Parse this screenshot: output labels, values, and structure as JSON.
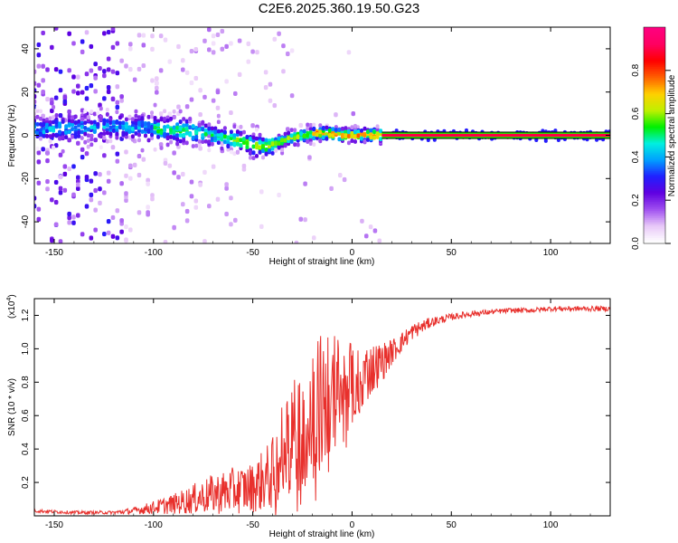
{
  "title": "C2E6.2025.360.19.50.G23",
  "chart_data": [
    {
      "type": "heatmap",
      "xlabel": "Height of straight line (km)",
      "ylabel": "Frequency (Hz)",
      "xlim": [
        -160,
        130
      ],
      "ylim": [
        -50,
        50
      ],
      "xticks": [
        -150,
        -100,
        -50,
        0,
        50,
        100
      ],
      "yticks": [
        -40,
        -20,
        0,
        20,
        40
      ],
      "ridge": {
        "x": [
          -160,
          -140,
          -120,
          -100,
          -85,
          -75,
          -65,
          -55,
          -48,
          -42,
          -36,
          -30,
          -24,
          -18,
          -12,
          -6,
          0,
          6,
          15,
          130
        ],
        "freq": [
          3,
          3,
          4,
          3,
          2,
          1,
          -1,
          -3,
          -5,
          -5,
          -3,
          -1,
          0,
          1,
          1,
          0,
          0,
          0,
          0,
          0
        ]
      },
      "colorbar": {
        "label": "Normalized spectral amplitude",
        "range": [
          0,
          1
        ],
        "ticks": [
          "0.0",
          "0.2",
          "0.4",
          "0.6",
          "0.8"
        ],
        "colors": [
          "#ffffff",
          "#e8c8f8",
          "#a050f0",
          "#6000e0",
          "#2020ff",
          "#00a0ff",
          "#00f0e0",
          "#00f000",
          "#c0f000",
          "#ffd000",
          "#ff6000",
          "#ff0000",
          "#ff0060",
          "#ff0080"
        ]
      }
    },
    {
      "type": "line",
      "xlabel": "Height of straight line (km)",
      "ylabel": "SNR (10 * v/v)",
      "y_multiplier": "(x10",
      "y_multiplier_exp": "4",
      "y_multiplier_close": ")",
      "xlim": [
        -160,
        130
      ],
      "ylim": [
        0,
        1.3
      ],
      "xticks": [
        -150,
        -100,
        -50,
        0,
        50,
        100
      ],
      "yticks": [
        "0.2",
        "0.4",
        "0.6",
        "0.8",
        "1.0",
        "1.2"
      ],
      "color": "#e8302c",
      "series": [
        {
          "name": "SNR",
          "x": [
            -160,
            -140,
            -120,
            -110,
            -100,
            -90,
            -80,
            -70,
            -60,
            -50,
            -40,
            -35,
            -30,
            -25,
            -20,
            -15,
            -10,
            -5,
            0,
            5,
            10,
            15,
            20,
            25,
            30,
            40,
            50,
            60,
            70,
            80,
            90,
            100,
            110,
            120,
            130
          ],
          "y": [
            0.03,
            0.02,
            0.02,
            0.03,
            0.05,
            0.07,
            0.1,
            0.13,
            0.15,
            0.17,
            0.25,
            0.38,
            0.5,
            0.58,
            0.64,
            0.68,
            0.72,
            0.76,
            0.8,
            0.84,
            0.88,
            0.92,
            0.98,
            1.04,
            1.1,
            1.16,
            1.19,
            1.21,
            1.22,
            1.23,
            1.23,
            1.24,
            1.24,
            1.24,
            1.24
          ],
          "noise": [
            0.01,
            0.01,
            0.01,
            0.02,
            0.04,
            0.06,
            0.09,
            0.12,
            0.14,
            0.15,
            0.22,
            0.32,
            0.4,
            0.45,
            0.45,
            0.42,
            0.38,
            0.3,
            0.26,
            0.2,
            0.16,
            0.12,
            0.08,
            0.06,
            0.05,
            0.03,
            0.02,
            0.02,
            0.015,
            0.015,
            0.015,
            0.015,
            0.015,
            0.015,
            0.015
          ]
        }
      ]
    }
  ]
}
